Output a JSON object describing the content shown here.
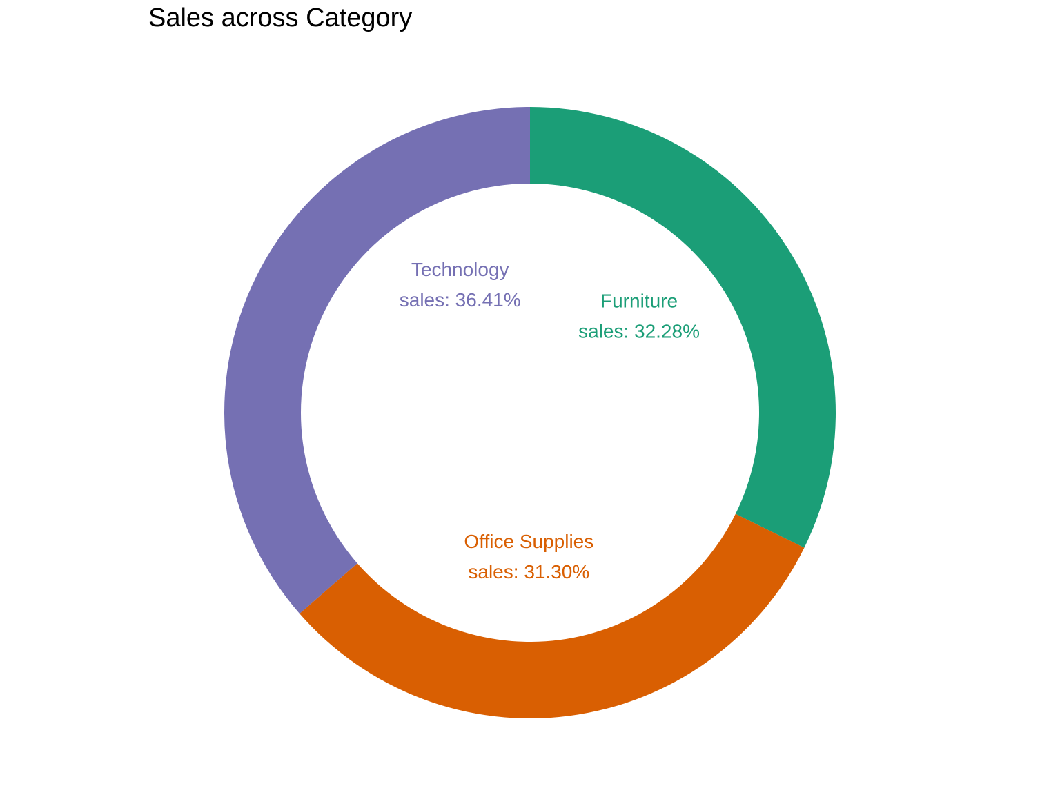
{
  "chart_data": {
    "type": "pie",
    "variant": "donut",
    "title": "Sales across Category",
    "start": "12 o'clock",
    "direction": "clockwise",
    "slices": [
      {
        "category": "Furniture",
        "value": 32.28,
        "label": "Furniture",
        "sublabel": "sales: 32.28%",
        "color": "#1b9e77"
      },
      {
        "category": "Office Supplies",
        "value": 31.3,
        "label": "Office Supplies",
        "sublabel": "sales: 31.30%",
        "color": "#d95f02"
      },
      {
        "category": "Technology",
        "value": 36.41,
        "label": "Technology",
        "sublabel": "sales: 36.41%",
        "color": "#7570b3"
      }
    ],
    "legend": "none",
    "grid": false
  }
}
